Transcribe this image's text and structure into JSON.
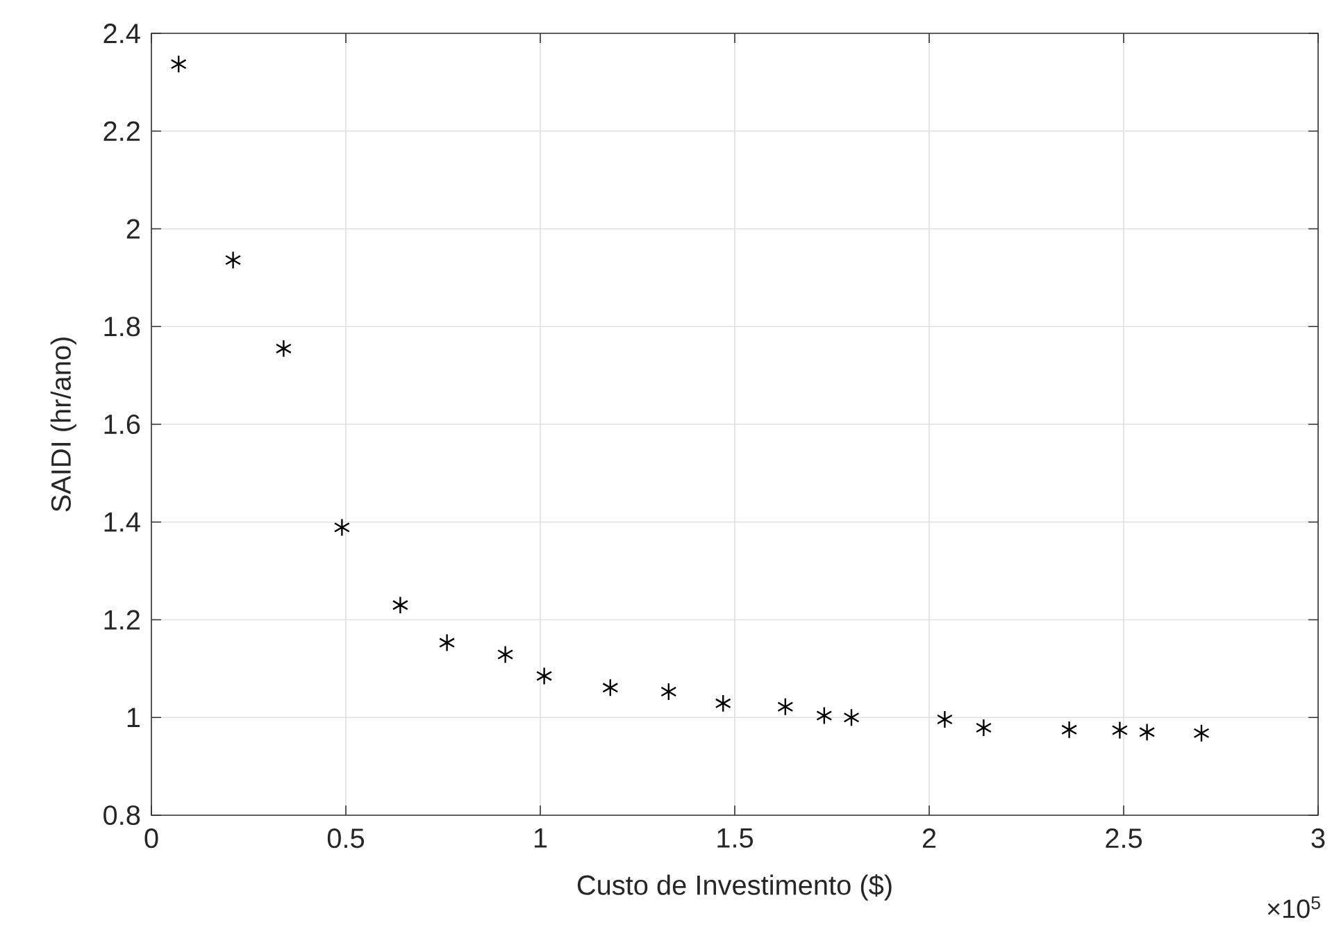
{
  "chart_data": {
    "type": "scatter",
    "xlabel": "Custo de Investimento ($)",
    "ylabel": "SAIDI  (hr/ano)",
    "x": [
      0.07,
      0.21,
      0.34,
      0.49,
      0.64,
      0.76,
      0.91,
      1.01,
      1.18,
      1.33,
      1.47,
      1.63,
      1.73,
      1.8,
      2.04,
      2.14,
      2.36,
      2.49,
      2.56,
      2.7
    ],
    "series": [
      {
        "color": "#000000",
        "values": [
          2.337,
          1.936,
          1.755,
          1.389,
          1.23,
          1.153,
          1.129,
          1.085,
          1.061,
          1.053,
          1.029,
          1.022,
          1.004,
          1.0,
          0.996,
          0.979,
          0.975,
          0.974,
          0.97,
          0.968
        ]
      }
    ],
    "xlim": [
      0,
      3
    ],
    "ylim": [
      0.8,
      2.4
    ],
    "xticks": [
      0,
      0.5,
      1,
      1.5,
      2,
      2.5,
      3
    ],
    "yticks": [
      0.8,
      1,
      1.2,
      1.4,
      1.6,
      1.8,
      2,
      2.2,
      2.4
    ],
    "annotations": [
      "×10$^{5}$"
    ],
    "grid": true,
    "marker": "cross"
  }
}
